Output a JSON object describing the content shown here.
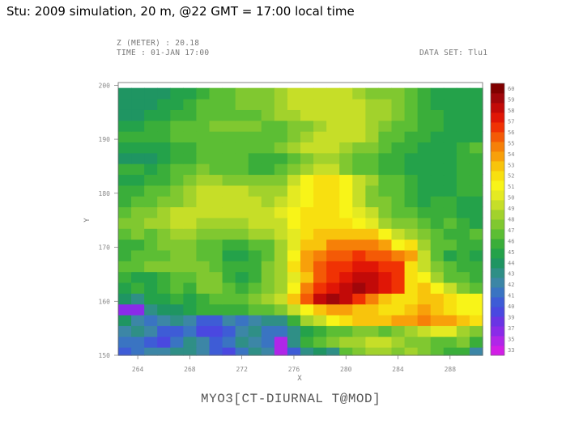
{
  "slide_title": "Stu: 2009 simulation, 20 m, @22 GMT = 17:00 local time",
  "header": {
    "z_line": "Z (METER) : 20.18",
    "time_line": "TIME : 01-JAN 17:00",
    "dataset_line": "DATA SET: Tlu1"
  },
  "footer_label": "MYO3[CT-DIURNAL T@MOD]",
  "chart_data": {
    "type": "heatmap",
    "xlabel": "X",
    "ylabel": "Y",
    "xlim": [
      262.5,
      290.5
    ],
    "ylim": [
      150,
      200.5
    ],
    "x_ticks": [
      264,
      268,
      272,
      276,
      280,
      284,
      288
    ],
    "x_tick_labels": [
      "264",
      "268",
      "272",
      "276",
      "280",
      "284",
      "288"
    ],
    "y_ticks": [
      150,
      160,
      170,
      180,
      190,
      200
    ],
    "y_tick_labels": [
      "150",
      "160",
      "170",
      "180",
      "190",
      "200"
    ],
    "colorbar_levels": [
      33,
      34,
      35,
      36,
      37,
      38,
      39,
      40,
      41,
      42,
      43,
      44,
      45,
      46,
      47,
      48,
      49,
      50,
      51,
      52,
      53,
      54,
      55,
      56,
      57,
      58,
      59,
      60
    ],
    "colorbar_labels": [
      "33",
      "35",
      "37",
      "39",
      "40",
      "41",
      "42",
      "43",
      "44",
      "45",
      "46",
      "47",
      "48",
      "49",
      "50",
      "51",
      "52",
      "53",
      "54",
      "55",
      "56",
      "57",
      "58",
      "59",
      "60"
    ],
    "colors": [
      "#d21ee6",
      "#b026e8",
      "#8a2be8",
      "#6a34e4",
      "#4a48e0",
      "#3e5cd6",
      "#3a74c2",
      "#3c86a6",
      "#2f8f86",
      "#1f9562",
      "#24a24a",
      "#3aae3a",
      "#5cbe34",
      "#80c830",
      "#a2d22c",
      "#c6de28",
      "#e4ea22",
      "#f8f418",
      "#f8e010",
      "#f8c40c",
      "#f8a00a",
      "#f68008",
      "#f45a06",
      "#f03204",
      "#e01606",
      "#c20a08",
      "#a0060a",
      "#800000"
    ],
    "z_grid_cols": 28,
    "z_grid_rows": 25,
    "z_grid_x_start": 263,
    "z_grid_x_step": 1,
    "z_grid_y_start": 150.5,
    "z_grid_y_step": 2,
    "z_grid": [
      [
        38,
        39,
        40,
        40,
        41,
        41,
        40,
        38,
        37,
        39,
        41,
        40,
        34,
        38,
        41,
        42,
        41,
        45,
        46,
        47,
        47,
        46,
        47,
        46,
        45,
        44,
        44,
        40
      ],
      [
        39,
        39,
        38,
        37,
        39,
        41,
        40,
        38,
        39,
        41,
        40,
        39,
        34,
        41,
        44,
        45,
        46,
        47,
        47,
        48,
        48,
        47,
        46,
        46,
        45,
        45,
        46,
        44
      ],
      [
        40,
        41,
        40,
        38,
        38,
        39,
        37,
        37,
        38,
        40,
        41,
        39,
        39,
        41,
        43,
        44,
        45,
        45,
        46,
        46,
        45,
        46,
        47,
        48,
        49,
        49,
        47,
        46
      ],
      [
        42,
        40,
        39,
        40,
        41,
        40,
        38,
        38,
        40,
        39,
        40,
        41,
        41,
        44,
        47,
        48,
        50,
        51,
        52,
        52,
        52,
        53,
        53,
        54,
        53,
        53,
        52,
        51
      ],
      [
        35,
        35,
        41,
        42,
        42,
        43,
        44,
        44,
        44,
        44,
        45,
        45,
        46,
        48,
        50,
        52,
        53,
        53,
        52,
        52,
        51,
        51,
        52,
        53,
        52,
        51,
        50,
        50
      ],
      [
        42,
        41,
        43,
        43,
        44,
        43,
        44,
        45,
        45,
        45,
        46,
        47,
        48,
        52,
        55,
        58,
        59,
        58,
        56,
        54,
        52,
        51,
        51,
        52,
        52,
        51,
        50,
        50
      ],
      [
        43,
        44,
        43,
        44,
        45,
        44,
        46,
        46,
        45,
        44,
        45,
        46,
        47,
        50,
        54,
        56,
        57,
        58,
        59,
        58,
        57,
        56,
        51,
        52,
        50,
        48,
        46,
        45
      ],
      [
        44,
        43,
        43,
        44,
        45,
        45,
        46,
        46,
        44,
        43,
        44,
        46,
        47,
        49,
        52,
        55,
        56,
        57,
        58,
        58,
        57,
        56,
        51,
        50,
        47,
        45,
        45,
        44
      ],
      [
        45,
        45,
        46,
        46,
        46,
        46,
        46,
        45,
        44,
        44,
        44,
        46,
        47,
        51,
        53,
        55,
        56,
        56,
        57,
        57,
        56,
        56,
        51,
        48,
        46,
        45,
        44,
        44
      ],
      [
        44,
        45,
        45,
        45,
        46,
        46,
        45,
        45,
        43,
        43,
        44,
        45,
        47,
        50,
        53,
        54,
        55,
        55,
        56,
        55,
        55,
        54,
        53,
        48,
        45,
        43,
        44,
        43
      ],
      [
        44,
        44,
        45,
        46,
        46,
        46,
        45,
        45,
        44,
        44,
        45,
        45,
        47,
        49,
        52,
        52,
        54,
        54,
        54,
        54,
        53,
        50,
        51,
        47,
        45,
        45,
        44,
        44
      ],
      [
        45,
        46,
        45,
        46,
        47,
        47,
        46,
        46,
        46,
        46,
        47,
        47,
        48,
        49,
        51,
        52,
        52,
        52,
        52,
        52,
        50,
        48,
        47,
        46,
        45,
        44,
        44,
        45
      ],
      [
        46,
        46,
        47,
        47,
        48,
        48,
        47,
        47,
        47,
        47,
        48,
        48,
        48,
        50,
        51,
        51,
        51,
        51,
        50,
        49,
        47,
        46,
        46,
        45,
        44,
        45,
        44,
        43
      ],
      [
        45,
        46,
        46,
        47,
        48,
        48,
        48,
        48,
        48,
        48,
        48,
        48,
        49,
        50,
        51,
        51,
        51,
        50,
        49,
        48,
        46,
        45,
        45,
        44,
        44,
        44,
        43,
        43
      ],
      [
        44,
        45,
        45,
        46,
        46,
        47,
        48,
        48,
        48,
        48,
        48,
        47,
        48,
        49,
        50,
        51,
        51,
        50,
        48,
        46,
        46,
        45,
        44,
        43,
        44,
        44,
        43,
        43
      ],
      [
        44,
        44,
        45,
        45,
        46,
        47,
        48,
        48,
        48,
        48,
        47,
        47,
        47,
        49,
        50,
        51,
        51,
        50,
        48,
        46,
        45,
        45,
        44,
        43,
        43,
        43,
        44,
        44
      ],
      [
        43,
        43,
        44,
        44,
        45,
        46,
        47,
        47,
        46,
        46,
        46,
        46,
        46,
        48,
        50,
        51,
        51,
        50,
        48,
        47,
        45,
        45,
        44,
        43,
        43,
        43,
        44,
        44
      ],
      [
        44,
        44,
        43,
        44,
        45,
        45,
        46,
        45,
        45,
        45,
        44,
        44,
        45,
        46,
        47,
        48,
        48,
        46,
        45,
        45,
        44,
        44,
        43,
        43,
        43,
        43,
        44,
        44
      ],
      [
        42,
        42,
        42,
        43,
        44,
        44,
        45,
        45,
        45,
        45,
        44,
        44,
        44,
        45,
        46,
        47,
        47,
        46,
        45,
        45,
        44,
        44,
        43,
        43,
        43,
        43,
        44,
        44
      ],
      [
        43,
        43,
        43,
        43,
        44,
        44,
        45,
        45,
        45,
        45,
        45,
        45,
        46,
        47,
        48,
        48,
        48,
        47,
        46,
        46,
        45,
        44,
        44,
        43,
        43,
        43,
        44,
        45
      ],
      [
        44,
        44,
        44,
        44,
        45,
        45,
        45,
        45,
        45,
        45,
        45,
        45,
        45,
        46,
        47,
        48,
        48,
        48,
        48,
        47,
        45,
        45,
        44,
        44,
        43,
        43,
        43,
        43
      ],
      [
        43,
        43,
        44,
        44,
        45,
        45,
        45,
        46,
        46,
        46,
        46,
        45,
        45,
        46,
        46,
        47,
        48,
        48,
        48,
        47,
        46,
        45,
        45,
        44,
        44,
        43,
        43,
        43
      ],
      [
        42,
        42,
        43,
        43,
        44,
        44,
        45,
        45,
        45,
        45,
        45,
        46,
        47,
        47,
        48,
        48,
        48,
        48,
        48,
        47,
        47,
        46,
        45,
        44,
        44,
        43,
        43,
        43
      ],
      [
        42,
        42,
        42,
        43,
        43,
        44,
        45,
        45,
        45,
        46,
        46,
        46,
        47,
        48,
        48,
        48,
        48,
        48,
        48,
        47,
        47,
        46,
        45,
        44,
        43,
        43,
        43,
        43
      ],
      [
        42,
        42,
        42,
        42,
        43,
        43,
        44,
        45,
        45,
        46,
        46,
        46,
        47,
        48,
        48,
        48,
        48,
        48,
        47,
        46,
        46,
        46,
        45,
        44,
        43,
        43,
        43,
        43
      ]
    ]
  }
}
